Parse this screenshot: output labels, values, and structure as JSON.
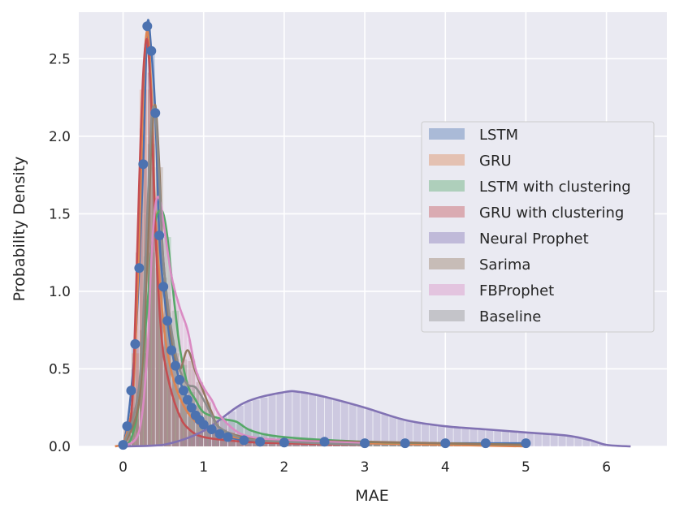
{
  "chart_data": {
    "type": "area",
    "title": "",
    "xlabel": "MAE",
    "ylabel": "Probability Density",
    "xlim": [
      -0.55,
      6.75
    ],
    "ylim": [
      0,
      2.8
    ],
    "xticks": [
      0,
      1,
      2,
      3,
      4,
      5,
      6
    ],
    "yticks": [
      0.0,
      0.5,
      1.0,
      1.5,
      2.0,
      2.5
    ],
    "xtick_labels": [
      "0",
      "1",
      "2",
      "3",
      "4",
      "5",
      "6"
    ],
    "ytick_labels": [
      "0.0",
      "0.5",
      "1.0",
      "1.5",
      "2.0",
      "2.5"
    ],
    "grid": true,
    "legend_position": "center-right",
    "legend": [
      "LSTM",
      "GRU",
      "LSTM with clustering",
      "GRU with clustering",
      "Neural Prophet",
      "Sarima",
      "FBProphet",
      "Baseline"
    ],
    "series": [
      {
        "name": "LSTM",
        "color": "#4c72b0",
        "marker": "circle",
        "x": [
          0,
          0.05,
          0.1,
          0.15,
          0.2,
          0.25,
          0.3,
          0.35,
          0.4,
          0.45,
          0.5,
          0.55,
          0.6,
          0.65,
          0.7,
          0.75,
          0.8,
          0.85,
          0.9,
          0.95,
          1.0,
          1.1,
          1.2,
          1.3,
          1.5,
          1.7,
          2.0,
          2.5,
          3.0,
          3.5,
          4.0,
          4.5,
          5.0
        ],
        "y": [
          0.01,
          0.13,
          0.36,
          0.66,
          1.15,
          1.82,
          2.71,
          2.55,
          2.15,
          1.36,
          1.03,
          0.81,
          0.62,
          0.52,
          0.43,
          0.36,
          0.3,
          0.25,
          0.2,
          0.17,
          0.14,
          0.11,
          0.08,
          0.06,
          0.04,
          0.03,
          0.025,
          0.03,
          0.02,
          0.02,
          0.02,
          0.02,
          0.02
        ]
      },
      {
        "name": "GRU",
        "color": "#dd8452",
        "marker": "none",
        "x": [
          -0.1,
          0.0,
          0.1,
          0.15,
          0.2,
          0.25,
          0.3,
          0.35,
          0.4,
          0.5,
          0.6,
          0.7,
          0.8,
          0.9,
          1.0,
          1.2,
          1.5,
          2.0,
          2.5,
          3.0,
          4.0,
          5.0
        ],
        "y": [
          0.0,
          0.02,
          0.22,
          0.6,
          1.3,
          2.3,
          2.68,
          2.3,
          1.5,
          0.8,
          0.48,
          0.32,
          0.22,
          0.16,
          0.12,
          0.08,
          0.05,
          0.04,
          0.03,
          0.02,
          0.01,
          0.0
        ]
      },
      {
        "name": "LSTM with clustering",
        "color": "#55a868",
        "marker": "none",
        "x": [
          0.0,
          0.1,
          0.2,
          0.3,
          0.35,
          0.4,
          0.45,
          0.5,
          0.55,
          0.6,
          0.7,
          0.8,
          0.9,
          1.0,
          1.2,
          1.4,
          1.6,
          2.0,
          3.0,
          4.0,
          5.0
        ],
        "y": [
          0.0,
          0.05,
          0.3,
          0.9,
          1.25,
          1.45,
          1.52,
          1.5,
          1.35,
          1.1,
          0.65,
          0.4,
          0.3,
          0.22,
          0.18,
          0.16,
          0.1,
          0.06,
          0.03,
          0.02,
          0.01
        ]
      },
      {
        "name": "GRU with clustering",
        "color": "#c44e52",
        "marker": "none",
        "x": [
          0.0,
          0.1,
          0.15,
          0.2,
          0.25,
          0.3,
          0.35,
          0.4,
          0.45,
          0.5,
          0.6,
          0.7,
          0.8,
          1.0,
          1.5,
          2.0,
          3.0
        ],
        "y": [
          0.0,
          0.2,
          0.8,
          1.7,
          2.4,
          2.62,
          2.2,
          1.4,
          0.9,
          0.6,
          0.35,
          0.2,
          0.12,
          0.06,
          0.03,
          0.02,
          0.01
        ]
      },
      {
        "name": "Neural Prophet",
        "color": "#8172b3",
        "marker": "none",
        "x": [
          0.0,
          0.5,
          1.0,
          1.5,
          2.0,
          2.2,
          2.5,
          3.0,
          3.5,
          4.0,
          4.5,
          5.0,
          5.5,
          5.8,
          6.0,
          6.3
        ],
        "y": [
          0.0,
          0.01,
          0.1,
          0.28,
          0.35,
          0.35,
          0.32,
          0.25,
          0.17,
          0.13,
          0.11,
          0.09,
          0.07,
          0.04,
          0.01,
          0.0
        ]
      },
      {
        "name": "Sarima",
        "color": "#937860",
        "marker": "none",
        "x": [
          0.0,
          0.2,
          0.3,
          0.35,
          0.4,
          0.45,
          0.5,
          0.6,
          0.7,
          0.8,
          0.9,
          1.0,
          1.1,
          1.2,
          1.5,
          2.0,
          3.0,
          4.0,
          5.0
        ],
        "y": [
          0.0,
          0.3,
          1.2,
          1.95,
          2.2,
          1.8,
          1.2,
          0.7,
          0.5,
          0.62,
          0.48,
          0.35,
          0.22,
          0.12,
          0.06,
          0.04,
          0.03,
          0.02,
          0.01
        ]
      },
      {
        "name": "FBProphet",
        "color": "#da8bc3",
        "marker": "none",
        "x": [
          0.0,
          0.2,
          0.3,
          0.35,
          0.4,
          0.45,
          0.5,
          0.6,
          0.7,
          0.8,
          0.9,
          1.0,
          1.1,
          1.2,
          1.4,
          1.6,
          2.0,
          3.0
        ],
        "y": [
          0.0,
          0.1,
          0.6,
          1.2,
          1.55,
          1.6,
          1.45,
          1.1,
          0.9,
          0.75,
          0.5,
          0.38,
          0.3,
          0.2,
          0.1,
          0.06,
          0.04,
          0.02
        ]
      },
      {
        "name": "Baseline",
        "color": "#8c8c8c",
        "marker": "none",
        "x": [
          0.0,
          0.2,
          0.3,
          0.35,
          0.4,
          0.45,
          0.5,
          0.6,
          0.7,
          0.8,
          0.9,
          1.0,
          1.1,
          1.2,
          1.5,
          2.0,
          3.0
        ],
        "y": [
          0.0,
          0.4,
          1.5,
          2.1,
          2.15,
          1.7,
          1.2,
          0.75,
          0.5,
          0.4,
          0.38,
          0.3,
          0.2,
          0.12,
          0.05,
          0.03,
          0.01
        ]
      }
    ]
  }
}
